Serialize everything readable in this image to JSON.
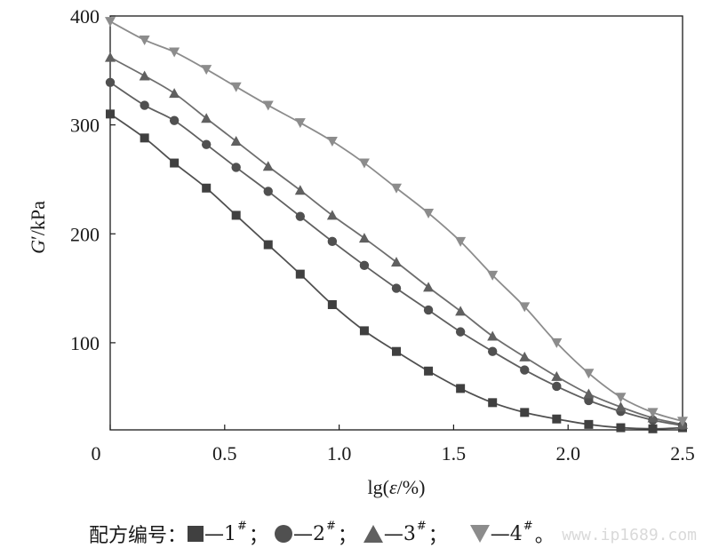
{
  "chart_data": {
    "type": "line",
    "xlabel": "lg(ε/%)",
    "ylabel": "G′/kPa",
    "xlim": [
      0,
      2.5
    ],
    "ylim": [
      20,
      400
    ],
    "x_ticks": [
      "0",
      "0.5",
      "1.0",
      "1.5",
      "2.0",
      "2.5"
    ],
    "y_ticks": [
      "100",
      "200",
      "300",
      "400"
    ],
    "series": [
      {
        "name": "1#",
        "marker": "square",
        "color": "#505050",
        "x": [
          0.0,
          0.15,
          0.28,
          0.42,
          0.55,
          0.69,
          0.83,
          0.97,
          1.11,
          1.25,
          1.39,
          1.53,
          1.67,
          1.81,
          1.95,
          2.09,
          2.23,
          2.37,
          2.5
        ],
        "y": [
          310,
          288,
          265,
          242,
          217,
          190,
          163,
          135,
          111,
          92,
          74,
          58,
          45,
          36,
          30,
          25,
          22,
          21,
          22
        ]
      },
      {
        "name": "2#",
        "marker": "circle",
        "color": "#606060",
        "x": [
          0.0,
          0.15,
          0.28,
          0.42,
          0.55,
          0.69,
          0.83,
          0.97,
          1.11,
          1.25,
          1.39,
          1.53,
          1.67,
          1.81,
          1.95,
          2.09,
          2.23,
          2.37,
          2.5
        ],
        "y": [
          339,
          318,
          304,
          282,
          261,
          239,
          216,
          193,
          171,
          150,
          130,
          110,
          92,
          75,
          60,
          47,
          37,
          29,
          24
        ]
      },
      {
        "name": "3#",
        "marker": "triangle-up",
        "color": "#6e6e6e",
        "x": [
          0.0,
          0.15,
          0.28,
          0.42,
          0.55,
          0.69,
          0.83,
          0.97,
          1.11,
          1.25,
          1.39,
          1.53,
          1.67,
          1.81,
          1.95,
          2.09,
          2.23,
          2.37,
          2.5
        ],
        "y": [
          362,
          345,
          329,
          306,
          285,
          262,
          240,
          217,
          196,
          174,
          151,
          129,
          106,
          87,
          69,
          53,
          41,
          31,
          25
        ]
      },
      {
        "name": "4#",
        "marker": "triangle-down",
        "color": "#8c8c8c",
        "x": [
          0.0,
          0.15,
          0.28,
          0.42,
          0.55,
          0.69,
          0.83,
          0.97,
          1.11,
          1.25,
          1.39,
          1.53,
          1.67,
          1.81,
          1.95,
          2.09,
          2.23,
          2.37,
          2.5
        ],
        "y": [
          395,
          378,
          367,
          351,
          335,
          318,
          302,
          285,
          265,
          242,
          219,
          193,
          162,
          133,
          100,
          72,
          50,
          36,
          28
        ]
      }
    ]
  },
  "legend": {
    "prefix": "配方编号：",
    "entries": [
      {
        "dash": "—",
        "num": "1",
        "sup": "#",
        "sep": "；"
      },
      {
        "dash": "—",
        "num": "2",
        "sup": "#",
        "sep": "；"
      },
      {
        "dash": "—",
        "num": "3",
        "sup": "#",
        "sep": "；"
      },
      {
        "dash": "—",
        "num": "4",
        "sup": "#",
        "sep": "。"
      }
    ]
  },
  "watermark": "www.ip1689.com"
}
